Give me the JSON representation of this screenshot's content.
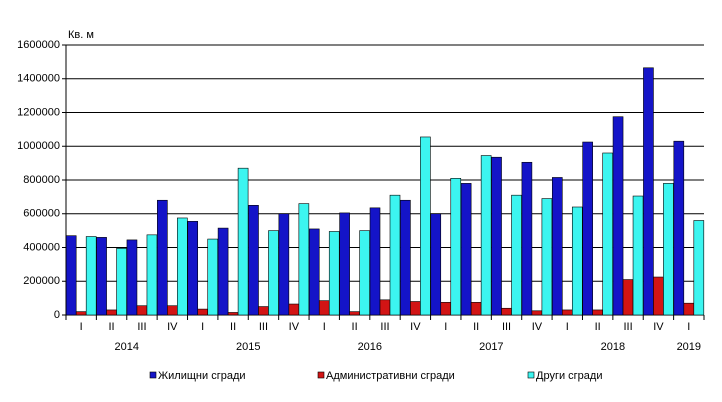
{
  "chart_data": {
    "type": "bar",
    "unit_label": "Кв. м",
    "categories": [
      "I",
      "II",
      "III",
      "IV",
      "I",
      "II",
      "III",
      "IV",
      "I",
      "II",
      "III",
      "IV",
      "I",
      "II",
      "III",
      "IV",
      "I",
      "II",
      "III",
      "IV",
      "I"
    ],
    "years": [
      {
        "label": "2014",
        "count": 4
      },
      {
        "label": "2015",
        "count": 4
      },
      {
        "label": "2016",
        "count": 4
      },
      {
        "label": "2017",
        "count": 4
      },
      {
        "label": "2018",
        "count": 4
      },
      {
        "label": "2019",
        "count": 1
      }
    ],
    "series": [
      {
        "name": "Жилищни сгради",
        "color": "#1414c8",
        "values": [
          470000,
          460000,
          445000,
          680000,
          555000,
          515000,
          650000,
          600000,
          510000,
          605000,
          635000,
          680000,
          600000,
          780000,
          935000,
          905000,
          815000,
          1025000,
          1175000,
          1465000,
          1030000
        ]
      },
      {
        "name": "Административни сгради",
        "color": "#d21414",
        "values": [
          20000,
          30000,
          55000,
          55000,
          35000,
          15000,
          50000,
          65000,
          85000,
          20000,
          90000,
          80000,
          75000,
          75000,
          40000,
          25000,
          30000,
          30000,
          210000,
          225000,
          70000
        ]
      },
      {
        "name": "Други сгради",
        "color": "#3cf5f0",
        "values": [
          465000,
          395000,
          475000,
          575000,
          450000,
          870000,
          500000,
          660000,
          495000,
          500000,
          710000,
          1055000,
          810000,
          945000,
          710000,
          690000,
          640000,
          960000,
          705000,
          780000,
          560000
        ]
      }
    ],
    "ylim": [
      0,
      1600000
    ],
    "yticks": [
      0,
      200000,
      400000,
      600000,
      800000,
      1000000,
      1200000,
      1400000,
      1600000
    ],
    "grid": true
  }
}
